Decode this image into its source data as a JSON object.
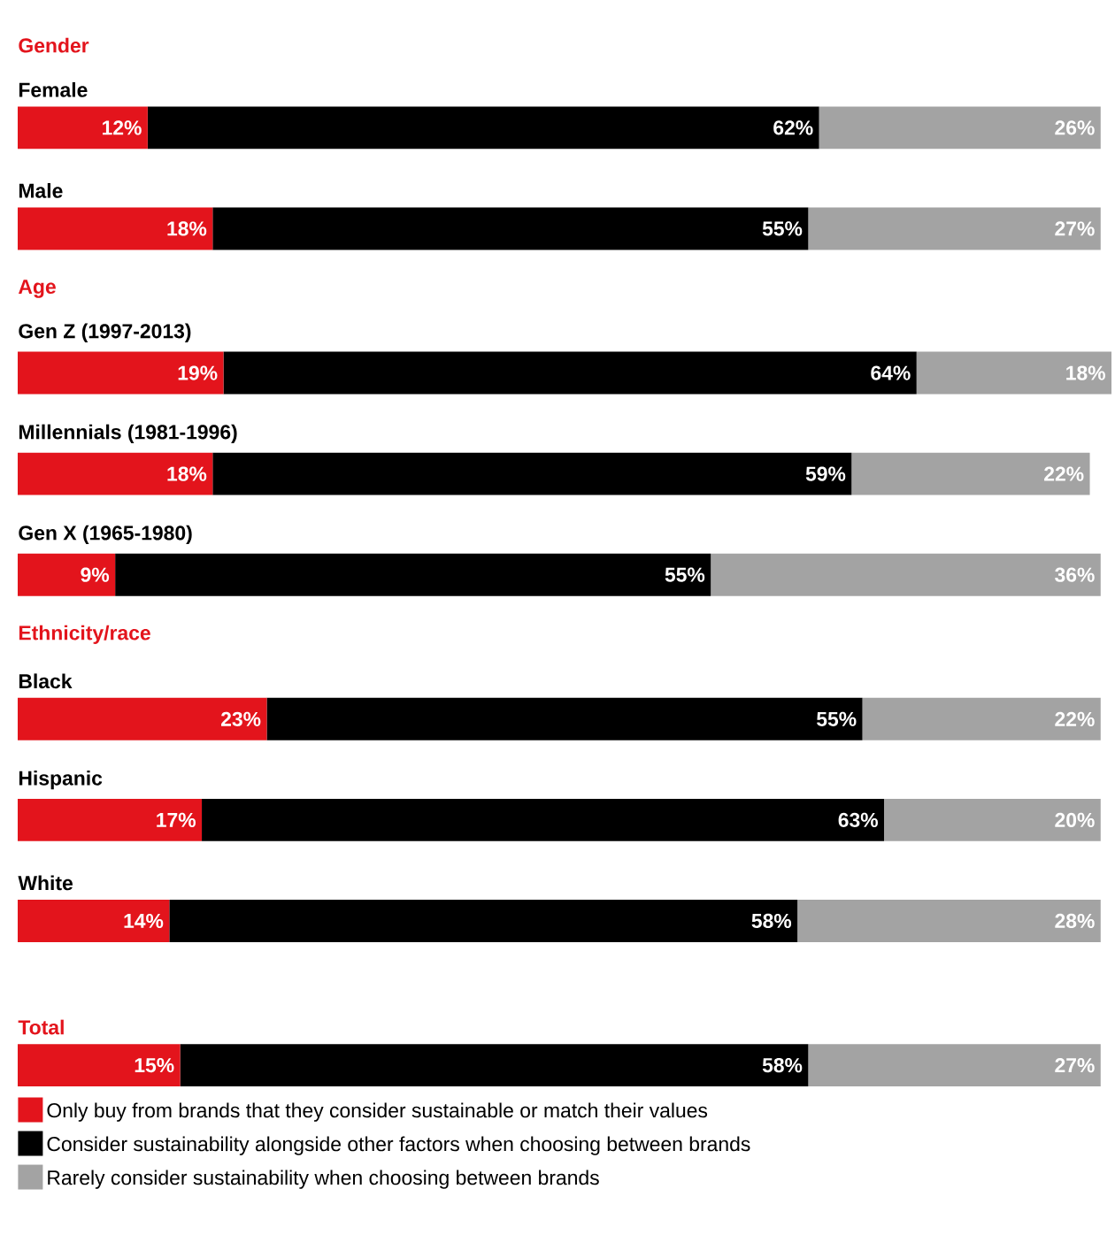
{
  "chart_data": {
    "type": "bar",
    "orientation": "horizontal",
    "stacked": true,
    "categories": [
      "Female",
      "Male",
      "Gen Z (1997-2013)",
      "Millennials (1981-1996)",
      "Gen X (1965-1980)",
      "Black",
      "Hispanic",
      "White",
      null
    ],
    "series": [
      {
        "name": "Only buy from brands that they consider sustainable or match their values",
        "color": "#e3141c",
        "values": [
          12,
          18,
          19,
          18,
          9,
          23,
          17,
          14,
          15
        ],
        "value_labels": [
          "12%",
          "18%",
          "19%",
          "18%",
          "9%",
          "23%",
          "17%",
          "14%",
          "15%"
        ]
      },
      {
        "name": "Consider sustainability alongside other factors when choosing between brands",
        "color": "#000000",
        "values": [
          62,
          55,
          64,
          59,
          55,
          55,
          63,
          58,
          58
        ],
        "value_labels": [
          "62%",
          "55%",
          "64%",
          "59%",
          "55%",
          "55%",
          "63%",
          "58%",
          "58%"
        ]
      },
      {
        "name": "Rarely consider sustainability when choosing between brands",
        "color": "#a3a3a3",
        "values": [
          26,
          27,
          18,
          22,
          36,
          22,
          20,
          28,
          27
        ],
        "value_labels": [
          "26%",
          "27%",
          "18%",
          "22%",
          "36%",
          "22%",
          "20%",
          "28%",
          "27%"
        ]
      }
    ],
    "annotations": [
      "Gender",
      "Age",
      "Ethnicity/race",
      "Total"
    ],
    "legend": "bottom"
  }
}
